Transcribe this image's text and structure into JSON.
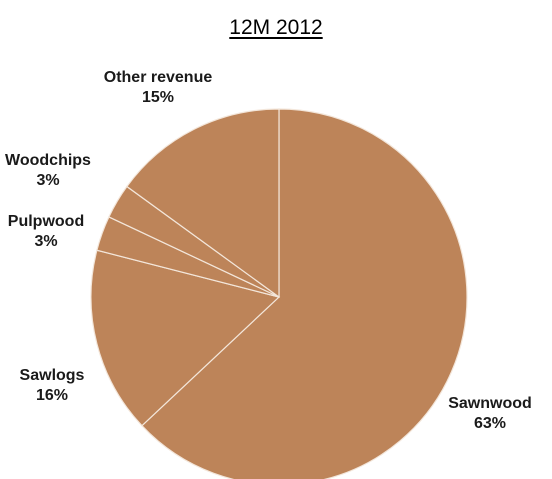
{
  "chart_data": {
    "type": "pie",
    "title": "12M 2012",
    "slices": [
      {
        "label": "Sawnwood",
        "value": 63,
        "value_label": "63%"
      },
      {
        "label": "Sawlogs",
        "value": 16,
        "value_label": "16%"
      },
      {
        "label": "Pulpwood",
        "value": 3,
        "value_label": "3%"
      },
      {
        "label": "Woodchips",
        "value": 3,
        "value_label": "3%"
      },
      {
        "label": "Other revenue",
        "value": 15,
        "value_label": "15%"
      }
    ],
    "start_angle_deg": 0,
    "direction": "clockwise",
    "colors": {
      "slice_fill": "#bd8459",
      "slice_border": "#f3e6da",
      "label_text": "#1a1a1a"
    },
    "legend": "none"
  }
}
